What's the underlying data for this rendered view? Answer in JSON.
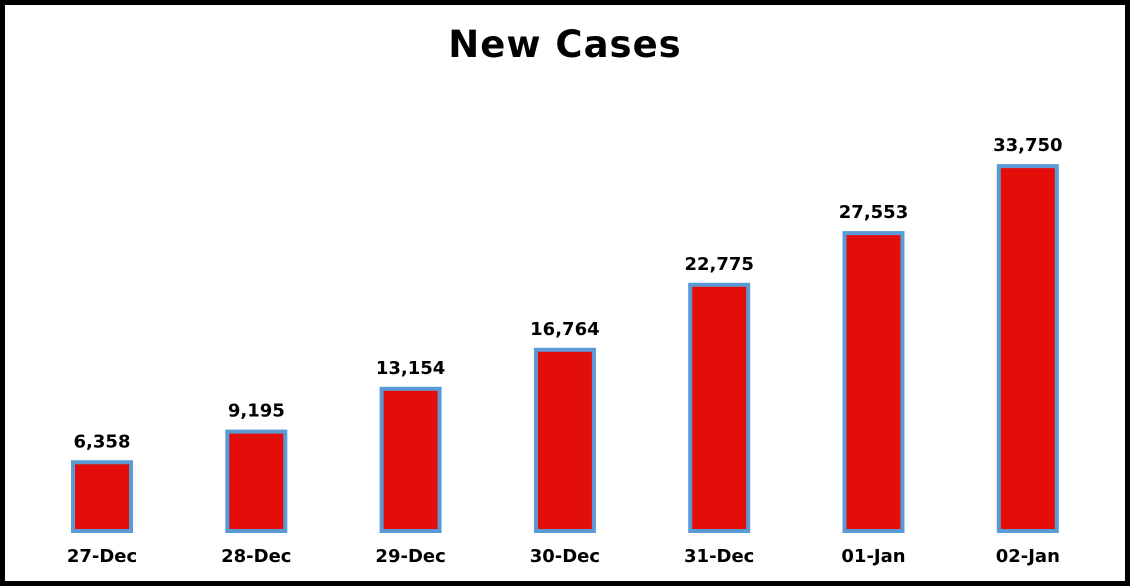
{
  "chart_data": {
    "type": "bar",
    "title": "New Cases",
    "categories": [
      "27-Dec",
      "28-Dec",
      "29-Dec",
      "30-Dec",
      "31-Dec",
      "01-Jan",
      "02-Jan"
    ],
    "values": [
      6358,
      9195,
      13154,
      16764,
      22775,
      27553,
      33750
    ],
    "data_labels": [
      "6,358",
      "9,195",
      "13,154",
      "16,764",
      "22,775",
      "27,553",
      "33,750"
    ],
    "xlabel": "",
    "ylabel": "",
    "ylim": [
      0,
      37000
    ],
    "grid": false,
    "legend": "none",
    "bar_color": "#e30e0a",
    "bar_edge_color": "#5b9bd5",
    "border_color": "#000000"
  }
}
